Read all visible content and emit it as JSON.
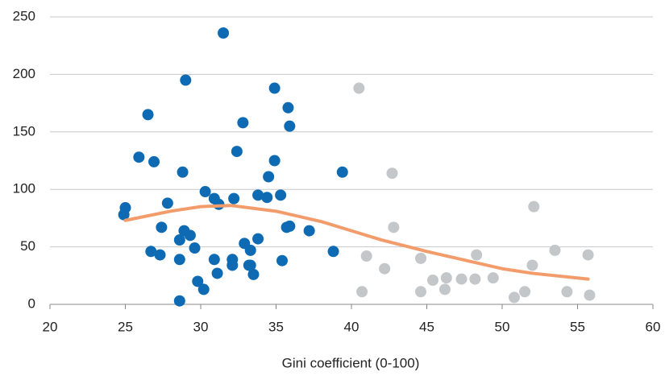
{
  "chart_data": {
    "type": "scatter",
    "xlabel": "Gini coefficient (0-100)",
    "xlim": [
      20,
      60
    ],
    "xticks": [
      20,
      25,
      30,
      35,
      40,
      45,
      50,
      55,
      60
    ],
    "ylim": [
      0,
      250
    ],
    "yticks": [
      0,
      50,
      100,
      150,
      200,
      250
    ],
    "grid": true,
    "series": [
      {
        "mode": "markers",
        "color": "#0e6bb3",
        "x": [
          25.0,
          24.9,
          25.9,
          26.5,
          26.9,
          26.7,
          27.3,
          27.4,
          27.8,
          28.8,
          29.0,
          28.6,
          28.9,
          29.3,
          29.6,
          28.6,
          28.6,
          29.8,
          30.2,
          30.3,
          30.9,
          31.2,
          30.9,
          31.1,
          31.5,
          32.2,
          32.4,
          32.8,
          32.1,
          32.1,
          32.9,
          33.3,
          33.2,
          33.3,
          33.5,
          33.8,
          33.8,
          34.4,
          34.5,
          34.9,
          34.9,
          35.3,
          35.4,
          35.8,
          35.9,
          35.7,
          35.9,
          37.2,
          38.8,
          39.4
        ],
        "values": [
          84,
          78,
          128,
          165,
          124,
          46,
          43,
          67,
          88,
          115,
          195,
          56,
          64,
          60,
          49,
          39,
          3,
          20,
          13,
          98,
          92,
          87,
          39,
          27,
          236,
          92,
          133,
          158,
          39,
          34,
          53,
          47,
          34,
          34,
          26,
          95,
          57,
          93,
          111,
          188,
          125,
          95,
          38,
          171,
          155,
          67,
          68,
          64,
          46,
          115
        ]
      },
      {
        "mode": "markers",
        "color": "#c3c7ca",
        "x": [
          40.5,
          40.7,
          41.0,
          42.2,
          42.7,
          42.8,
          44.6,
          44.6,
          45.4,
          46.2,
          46.3,
          47.3,
          48.2,
          48.3,
          49.4,
          50.8,
          51.5,
          52.0,
          52.1,
          53.5,
          54.3,
          55.7,
          55.8
        ],
        "values": [
          188,
          11,
          42,
          31,
          114,
          67,
          40,
          11,
          21,
          13,
          23,
          22,
          22,
          43,
          23,
          6,
          11,
          34,
          85,
          47,
          11,
          43,
          8
        ]
      },
      {
        "mode": "line",
        "color": "#f39c6b",
        "x": [
          25,
          28,
          30,
          32,
          35,
          38,
          40,
          42,
          45,
          48,
          50,
          52,
          55.7
        ],
        "values": [
          73,
          81,
          85,
          86,
          81,
          72,
          64,
          56,
          46,
          37,
          31,
          27,
          22
        ]
      }
    ]
  }
}
